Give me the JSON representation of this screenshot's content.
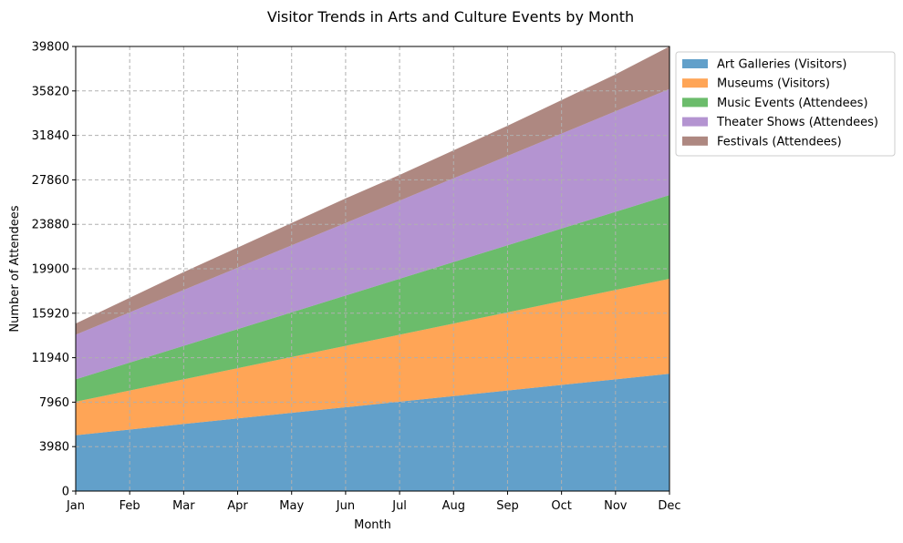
{
  "chart_data": {
    "type": "area",
    "stacked": true,
    "title": "Visitor Trends in Arts and Culture Events by Month",
    "xlabel": "Month",
    "ylabel": "Number of Attendees",
    "categories": [
      "Jan",
      "Feb",
      "Mar",
      "Apr",
      "May",
      "Jun",
      "Jul",
      "Aug",
      "Sep",
      "Oct",
      "Nov",
      "Dec"
    ],
    "ylim": [
      0,
      39800
    ],
    "yticks": [
      0,
      3980,
      7960,
      11940,
      15920,
      19900,
      23880,
      27860,
      31840,
      35820,
      39800
    ],
    "grid": true,
    "legend_position": "upper right, outside plot",
    "series": [
      {
        "name": "Art Galleries (Visitors)",
        "color": "#1f77b4",
        "values": [
          5000,
          5500,
          6000,
          6500,
          7000,
          7500,
          8000,
          8500,
          9000,
          9500,
          10000,
          10500
        ]
      },
      {
        "name": "Museums (Visitors)",
        "color": "#ff7f0e",
        "values": [
          3000,
          3500,
          4000,
          4500,
          5000,
          5500,
          6000,
          6500,
          7000,
          7500,
          8000,
          8500
        ]
      },
      {
        "name": "Music Events (Attendees)",
        "color": "#2ca02c",
        "values": [
          2000,
          2500,
          3000,
          3500,
          4000,
          4500,
          5000,
          5500,
          6000,
          6500,
          7000,
          7500
        ]
      },
      {
        "name": "Theater Shows (Attendees)",
        "color": "#9467bd",
        "values": [
          4000,
          4500,
          5000,
          5500,
          6000,
          6500,
          7000,
          7500,
          8000,
          8500,
          9000,
          9500
        ]
      },
      {
        "name": "Festivals (Attendees)",
        "color": "#8c564b",
        "values": [
          1000,
          1300,
          1600,
          1800,
          2000,
          2200,
          2300,
          2500,
          2700,
          3000,
          3300,
          3800
        ]
      }
    ]
  }
}
